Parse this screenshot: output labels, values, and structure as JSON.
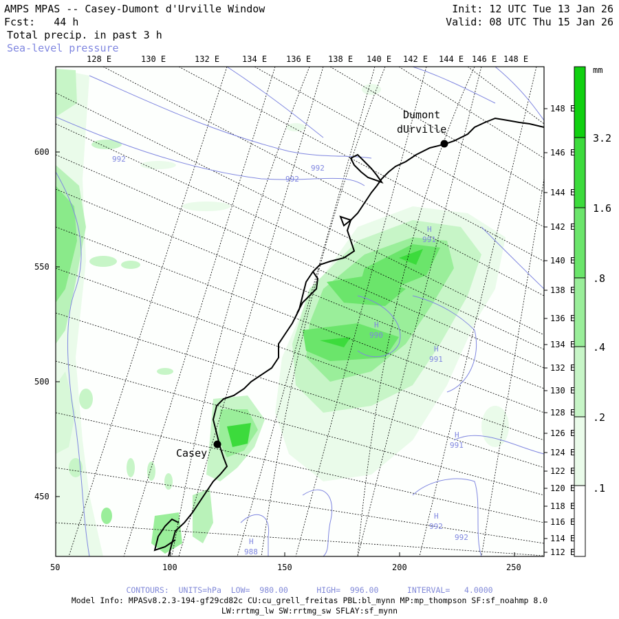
{
  "header": {
    "title": "AMPS MPAS -- Casey-Dumont d'Urville Window",
    "forecast": "Fcst:   44 h",
    "field": "Total precip. in past 3 h",
    "overlay": "Sea-level pressure",
    "init": "Init: 12 UTC Tue 13 Jan 26",
    "valid": "Valid: 08 UTC Thu 15 Jan 26"
  },
  "axes": {
    "bottom_ticks": [
      "50",
      "100",
      "150",
      "200",
      "250"
    ],
    "left_ticks": [
      "450",
      "500",
      "550",
      "600"
    ],
    "top_lon_labels": [
      "128 E",
      "130 E",
      "132 E",
      "134 E",
      "136 E",
      "138 E",
      "140 E",
      "142 E",
      "144 E",
      "146 E",
      "148 E"
    ],
    "right_lat_labels": [
      "112 E",
      "114 E",
      "116 E",
      "118 E",
      "120 E",
      "122 E",
      "124 E",
      "126 E",
      "128 E",
      "130 E",
      "132 E",
      "134 E",
      "136 E",
      "138 E",
      "140 E",
      "142 E",
      "144 E",
      "146 E",
      "148 E"
    ]
  },
  "colorbar": {
    "unit": "mm",
    "labels": [
      "3.2",
      "1.6",
      ".8",
      ".4",
      ".2",
      ".1"
    ],
    "colors": [
      "#ffffff",
      "#eafbea",
      "#c7f5c7",
      "#9aee9a",
      "#6be56b",
      "#3cdb3c",
      "#10d010"
    ]
  },
  "places": [
    {
      "name": "Dumont\ndUrville",
      "line1": "Dumont",
      "line2": "dUrville"
    },
    {
      "name": "Casey"
    }
  ],
  "pressure_labels": [
    "992",
    "992",
    "992",
    "991",
    "990",
    "991",
    "991",
    "992",
    "992",
    "988"
  ],
  "highs": [
    "H",
    "H",
    "H",
    "H",
    "H",
    "H"
  ],
  "footer": {
    "contours": "CONTOURS:  UNITS=hPa  LOW=  980.00      HIGH=  996.00      INTERVAL=   4.0000",
    "model_info": "Model Info: MPASv8.2.3-194-gf29cd82c CU:cu_grell_freitas PBL:bl_mynn MP:mp_thompson SF:sf_noahmp 8.0",
    "model_info2": "LW:rrtmg_lw SW:rrtmg_sw SFLAY:sf_mynn"
  }
}
